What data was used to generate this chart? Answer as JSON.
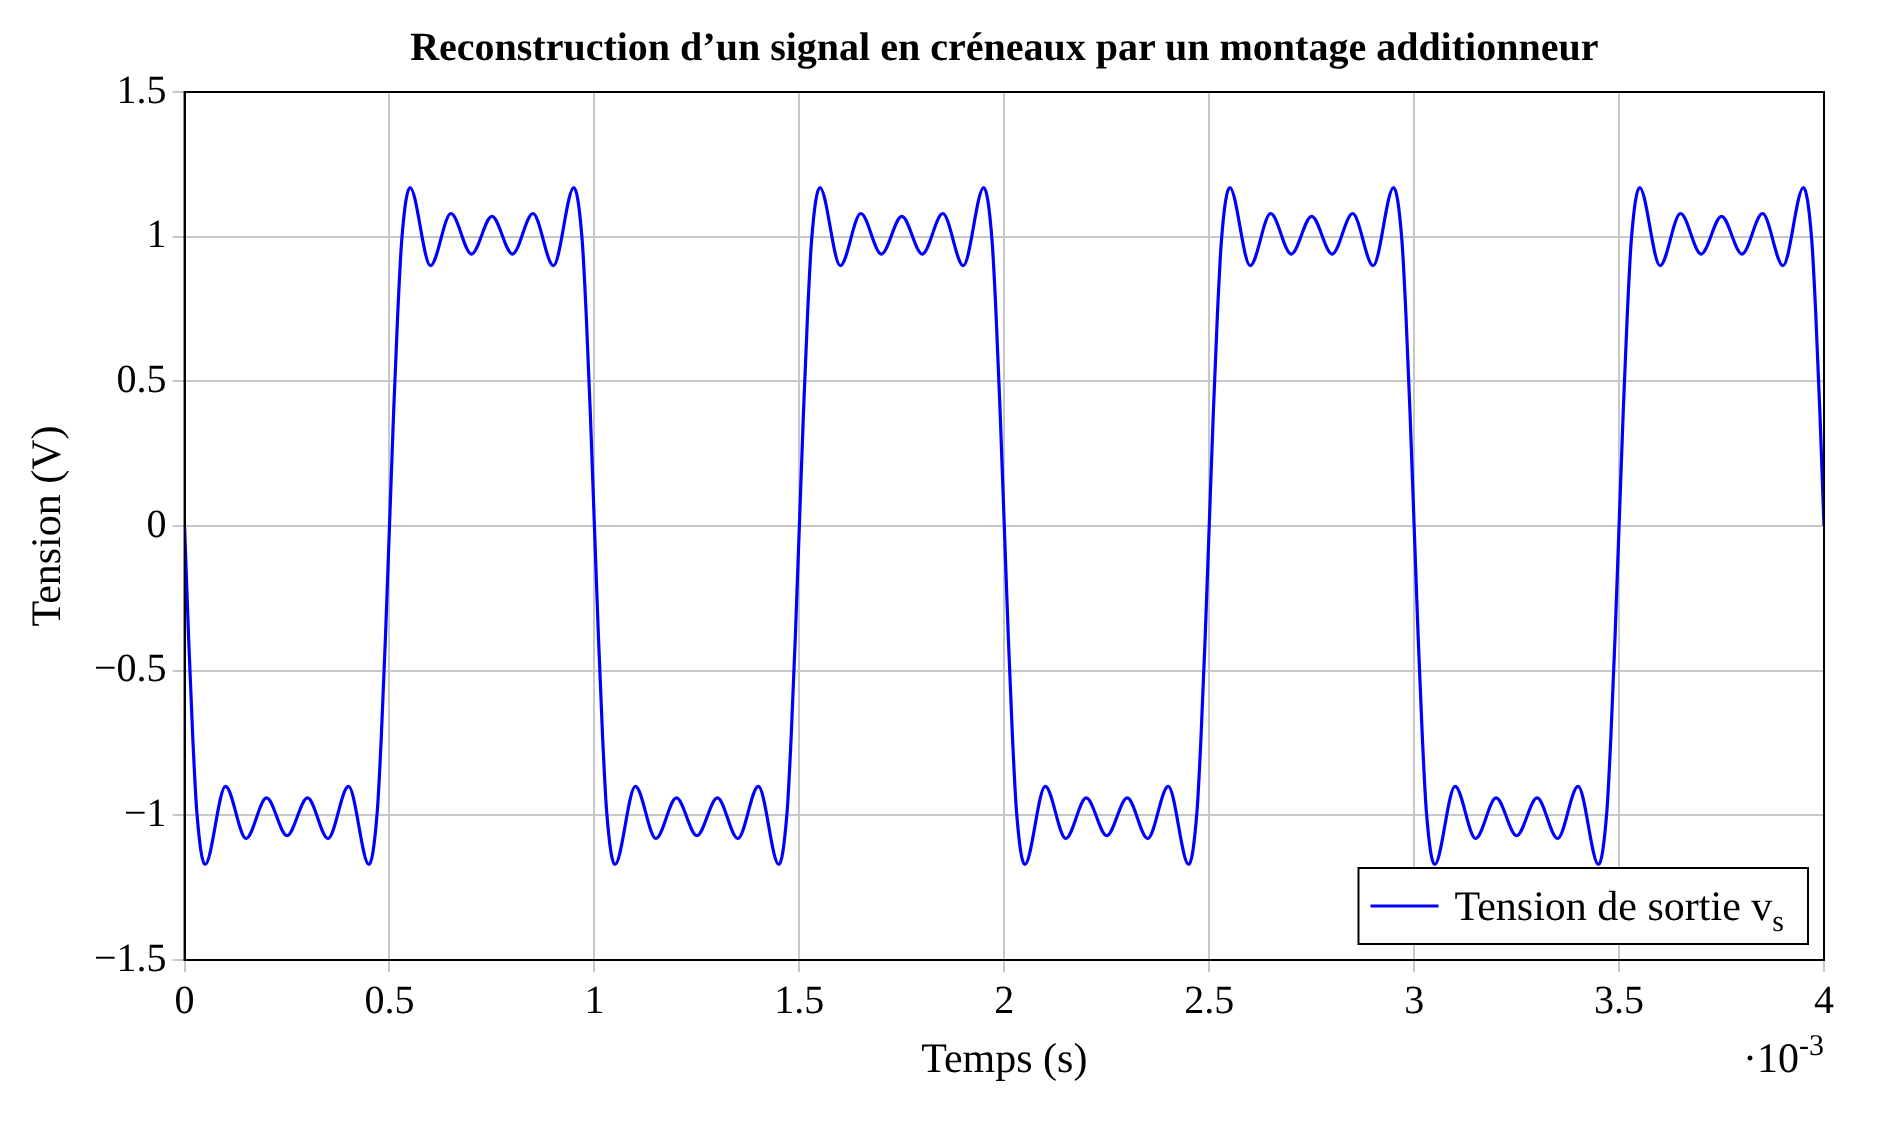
{
  "chart_data": {
    "type": "line",
    "title": "Reconstruction d’un signal en créneaux par un montage additionneur",
    "xlabel": "Temps (s)",
    "ylabel": "Tension (V)",
    "annotations": [
      "·10$^{-3}$"
    ],
    "xlim": [
      0,
      4
    ],
    "xticks": [
      0,
      0.5,
      1,
      1.5,
      2,
      2.5,
      3,
      3.5,
      4
    ],
    "ylim": [
      -1.5,
      1.5
    ],
    "yticks": [
      -1.5,
      -1,
      -0.5,
      0,
      0.5,
      1,
      1.5
    ],
    "grid": true,
    "legend": "bottom right",
    "marker": "none",
    "line_style": "solid",
    "series": [
      {
        "name": "Tension de sortie v$_{s}$",
        "color": "#0000ff",
        "x": [
          0,
          0.01,
          0.02,
          0.03,
          0.05,
          0.1,
          0.15,
          0.2,
          0.25,
          0.3,
          0.35,
          0.4,
          0.45,
          0.47,
          0.48,
          0.49,
          0.5,
          0.51,
          0.52,
          0.53,
          0.55,
          0.6,
          0.65,
          0.7,
          0.75,
          0.8,
          0.85,
          0.9,
          0.95,
          0.97,
          0.98,
          0.99,
          1,
          1.01,
          1.02,
          1.03,
          1.05,
          1.1,
          1.15,
          1.2,
          1.25,
          1.3,
          1.35,
          1.4,
          1.45,
          1.47,
          1.48,
          1.49,
          1.5,
          1.51,
          1.52,
          1.53,
          1.55,
          1.6,
          1.65,
          1.7,
          1.75,
          1.8,
          1.85,
          1.9,
          1.95,
          1.97,
          1.98,
          1.99,
          2,
          2.01,
          2.02,
          2.03,
          2.05,
          2.1,
          2.15,
          2.2,
          2.25,
          2.3,
          2.35,
          2.4,
          2.45,
          2.47,
          2.48,
          2.49,
          2.5,
          2.51,
          2.52,
          2.53,
          2.55,
          2.6,
          2.65,
          2.7,
          2.75,
          2.8,
          2.85,
          2.9,
          2.95,
          2.97,
          2.98,
          2.99,
          3,
          3.01,
          3.02,
          3.03,
          3.05,
          3.1,
          3.15,
          3.2,
          3.25,
          3.3,
          3.35,
          3.4,
          3.45,
          3.47,
          3.48,
          3.49,
          3.5,
          3.51,
          3.52,
          3.53,
          3.55,
          3.6,
          3.65,
          3.7,
          3.75,
          3.8,
          3.85,
          3.9,
          3.95,
          3.97,
          3.98,
          3.99,
          4
        ],
        "values": [
          0,
          -0.39,
          -0.73,
          -0.99,
          -1.17,
          -0.9,
          -1.08,
          -0.94,
          -1.07,
          -0.94,
          -1.08,
          -0.9,
          -1.17,
          -0.99,
          -0.73,
          -0.39,
          0,
          0.39,
          0.73,
          0.99,
          1.17,
          0.9,
          1.08,
          0.94,
          1.07,
          0.94,
          1.08,
          0.9,
          1.17,
          0.99,
          0.73,
          0.39,
          0,
          -0.39,
          -0.73,
          -0.99,
          -1.17,
          -0.9,
          -1.08,
          -0.94,
          -1.07,
          -0.94,
          -1.08,
          -0.9,
          -1.17,
          -0.99,
          -0.73,
          -0.39,
          0,
          0.39,
          0.73,
          0.99,
          1.17,
          0.9,
          1.08,
          0.94,
          1.07,
          0.94,
          1.08,
          0.9,
          1.17,
          0.99,
          0.73,
          0.39,
          0,
          -0.39,
          -0.73,
          -0.99,
          -1.17,
          -0.9,
          -1.08,
          -0.94,
          -1.07,
          -0.94,
          -1.08,
          -0.9,
          -1.17,
          -0.99,
          -0.73,
          -0.39,
          0,
          0.39,
          0.73,
          0.99,
          1.17,
          0.9,
          1.08,
          0.94,
          1.07,
          0.94,
          1.08,
          0.9,
          1.17,
          0.99,
          0.73,
          0.39,
          0,
          -0.39,
          -0.73,
          -0.99,
          -1.17,
          -0.9,
          -1.08,
          -0.94,
          -1.07,
          -0.94,
          -1.08,
          -0.9,
          -1.17,
          -0.99,
          -0.73,
          -0.39,
          0,
          0.39,
          0.73,
          0.99,
          1.17,
          0.9,
          1.08,
          0.94,
          1.07,
          0.94,
          1.08,
          0.9,
          1.17,
          0.99,
          0.73,
          0.39,
          0
        ]
      }
    ]
  }
}
